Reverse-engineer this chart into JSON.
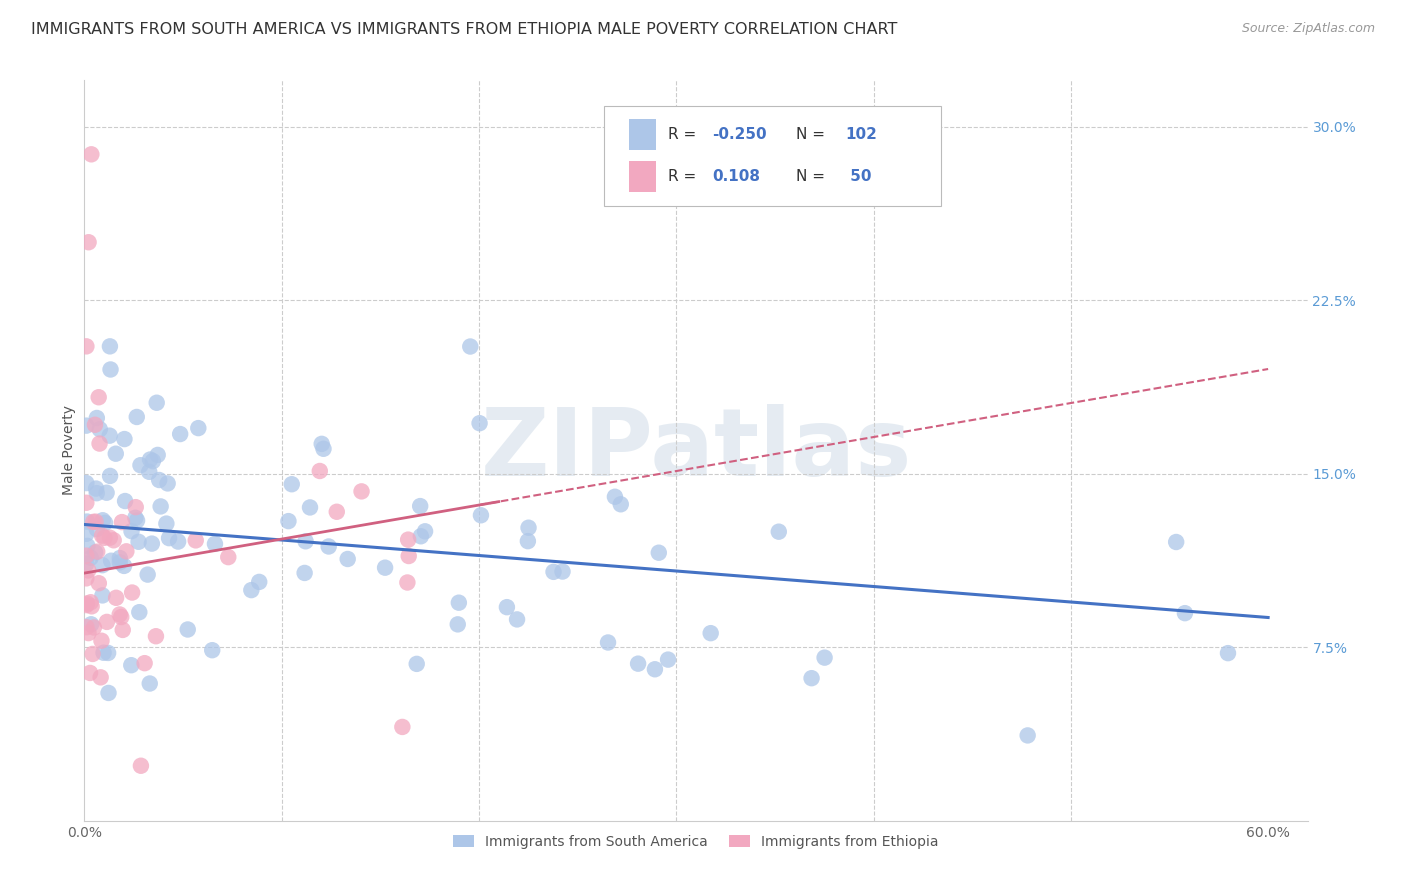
{
  "title": "IMMIGRANTS FROM SOUTH AMERICA VS IMMIGRANTS FROM ETHIOPIA MALE POVERTY CORRELATION CHART",
  "source": "Source: ZipAtlas.com",
  "ylabel": "Male Poverty",
  "watermark": "ZIPatlas",
  "legend_label1": "Immigrants from South America",
  "legend_label2": "Immigrants from Ethiopia",
  "xlim": [
    0.0,
    0.62
  ],
  "ylim": [
    0.0,
    0.32
  ],
  "xtick_positions": [
    0.0,
    0.1,
    0.2,
    0.3,
    0.4,
    0.5,
    0.6
  ],
  "xtick_labels": [
    "0.0%",
    "",
    "",
    "",
    "",
    "",
    "60.0%"
  ],
  "ytick_positions": [
    0.075,
    0.15,
    0.225,
    0.3
  ],
  "ytick_labels": [
    "7.5%",
    "15.0%",
    "22.5%",
    "30.0%"
  ],
  "color_blue": "#adc6e8",
  "color_pink": "#f2a8c0",
  "line_blue": "#4472c4",
  "line_pink": "#d06080",
  "title_fontsize": 11.5,
  "axis_label_fontsize": 10,
  "tick_label_fontsize": 10,
  "source_fontsize": 9,
  "watermark_color": "#d0dce8"
}
